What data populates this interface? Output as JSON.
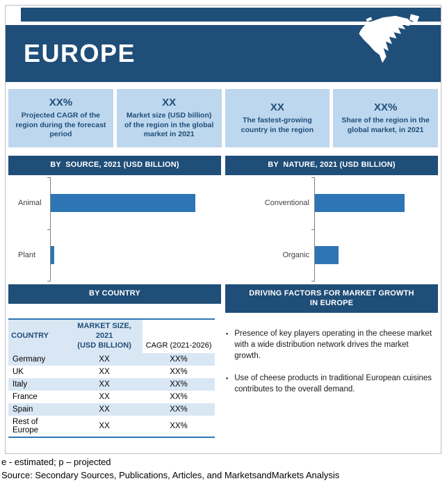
{
  "colors": {
    "navy": "#1F4E78",
    "stat_box_blue": "#BDD7EE",
    "bar_blue": "#2E75B6",
    "table_row_blue": "#D9E7F5",
    "border_gray": "#BFBFBF"
  },
  "header": {
    "title": "EUROPE",
    "map": "north-america-silhouette"
  },
  "stats": [
    {
      "value": "XX%",
      "label": "Projected CAGR of the region during the forecast period"
    },
    {
      "value": "XX",
      "label": "Market size (USD billion) of the region in the global market in 2021"
    },
    {
      "value": "XX",
      "label": "The fastest-growing country in the region"
    },
    {
      "value": "XX%",
      "label": "Share of the region in the global market, in 2021"
    }
  ],
  "section_titles": {
    "by_source": "BY  SOURCE, 2021 (USD BILLION)",
    "by_nature": "BY  NATURE, 2021 (USD BILLION)",
    "by_country": "BY COUNTRY",
    "driving_factors": "DRIVING FACTORS FOR MARKET GROWTH\nIN EUROPE"
  },
  "chart_data": [
    {
      "type": "bar",
      "orientation": "horizontal",
      "title": "BY SOURCE, 2021 (USD BILLION)",
      "categories": [
        "Animal",
        "Plant"
      ],
      "values": [
        0.85,
        0.02
      ],
      "xlim": [
        0,
        1
      ],
      "bar_color": "#2E75B6",
      "note": "Numeric values not labeled in figure (placeholder XX); bar lengths estimated as fraction of axis"
    },
    {
      "type": "bar",
      "orientation": "horizontal",
      "title": "BY NATURE, 2021 (USD BILLION)",
      "categories": [
        "Conventional",
        "Organic"
      ],
      "values": [
        0.73,
        0.19
      ],
      "xlim": [
        0,
        1
      ],
      "bar_color": "#2E75B6",
      "note": "Numeric values not labeled in figure (placeholder XX); bar lengths estimated as fraction of axis"
    }
  ],
  "country_table": {
    "headers": [
      "COUNTRY",
      "MARKET SIZE, 2021\n(USD BILLION)",
      "CAGR (2021-2026)"
    ],
    "rows": [
      [
        "Germany",
        "XX",
        "XX%"
      ],
      [
        "UK",
        "XX",
        "XX%"
      ],
      [
        "Italy",
        "XX",
        "XX%"
      ],
      [
        "France",
        "XX",
        "XX%"
      ],
      [
        "Spain",
        "XX",
        "XX%"
      ],
      [
        "Rest of\nEurope",
        "XX",
        "XX%"
      ]
    ]
  },
  "driving_factors": [
    "Presence of key players operating in the cheese market with a wide distribution network drives the market growth.",
    "Use of cheese products in traditional European cuisines contributes to the overall demand."
  ],
  "footer": {
    "line1": "e - estimated; p – projected",
    "line2": "Source: Secondary Sources, Publications, Articles, and MarketsandMarkets Analysis"
  }
}
